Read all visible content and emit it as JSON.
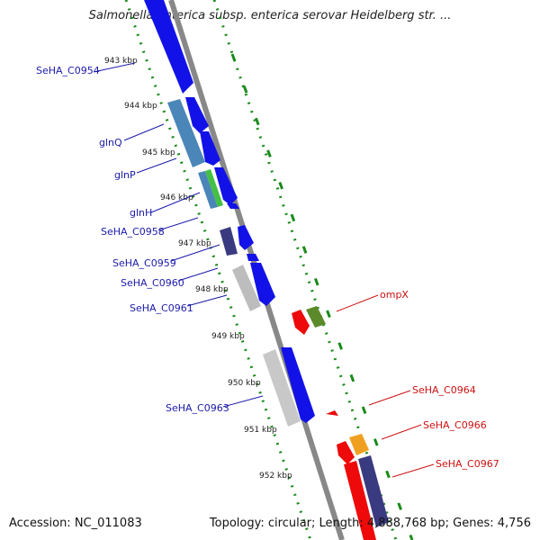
{
  "title": "Salmonella enterica subsp. enterica serovar Heidelberg str. ...",
  "accession": "Accession: NC_011083",
  "stats": "Topology: circular; Length: 4,888,768 bp; Genes: 4,756",
  "ticks": [
    "943 kbp",
    "944 kbp",
    "945 kbp",
    "946 kbp",
    "947 kbp",
    "948 kbp",
    "949 kbp",
    "950 kbp",
    "951 kbp",
    "952 kbp"
  ],
  "genes_left": [
    {
      "name": "SeHA_C0954"
    },
    {
      "name": "glnQ"
    },
    {
      "name": "glnP"
    },
    {
      "name": "glnH"
    },
    {
      "name": "SeHA_C0958"
    },
    {
      "name": "SeHA_C0959"
    },
    {
      "name": "SeHA_C0960"
    },
    {
      "name": "SeHA_C0961"
    },
    {
      "name": "SeHA_C0963"
    }
  ],
  "genes_right": [
    {
      "name": "ompX"
    },
    {
      "name": "SeHA_C0964"
    },
    {
      "name": "SeHA_C0966"
    },
    {
      "name": "SeHA_C0967"
    }
  ],
  "colors": {
    "backbone": "#888888",
    "cds_forward": "#1010e0",
    "cds_grey": "#bdbdbd",
    "gln_blue": "#4a86b8",
    "gln_green": "#44c044",
    "dark_purple": "#3a3a80",
    "red": "#ee0a0a",
    "olive": "#5c8a2a",
    "orange": "#f0a020",
    "dotted_green": "#1a8a1a"
  }
}
